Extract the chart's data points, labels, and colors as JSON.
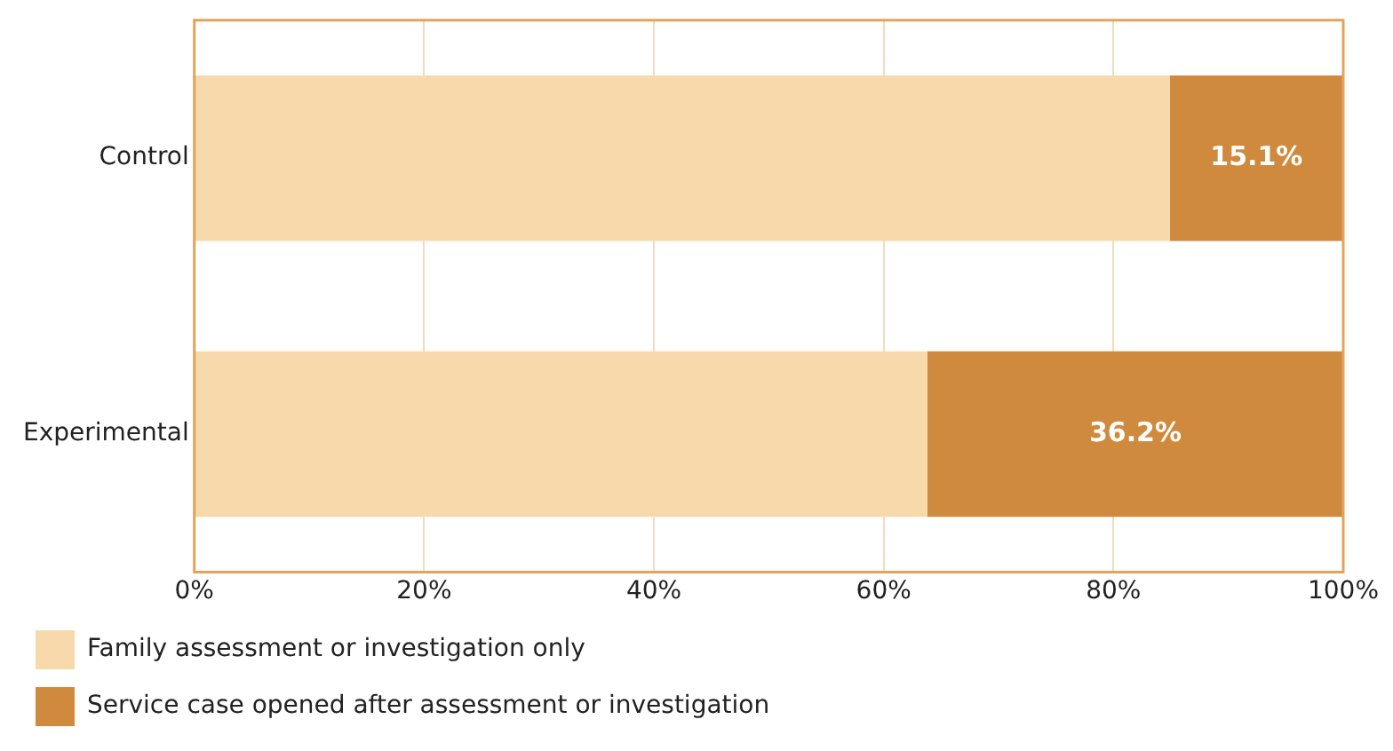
{
  "chart_data": {
    "type": "bar",
    "orientation": "horizontal",
    "stacked": true,
    "categories": [
      "Control",
      "Experimental"
    ],
    "series": [
      {
        "name": "Family assessment or investigation only",
        "color": "#f7d9ab",
        "values": [
          84.9,
          63.8
        ]
      },
      {
        "name": "Service case opened after assessment or investigation",
        "color": "#cf8a3e",
        "values": [
          15.1,
          36.2
        ],
        "value_labels": [
          "15.1%",
          "36.2%"
        ]
      }
    ],
    "xlim": [
      0,
      100
    ],
    "xticks": [
      {
        "value": 0,
        "label": "0%"
      },
      {
        "value": 20,
        "label": "20%"
      },
      {
        "value": 40,
        "label": "40%"
      },
      {
        "value": 60,
        "label": "60%"
      },
      {
        "value": 80,
        "label": "80%"
      },
      {
        "value": 100,
        "label": "100%"
      }
    ],
    "grid": "x",
    "legend": "bottom left"
  }
}
